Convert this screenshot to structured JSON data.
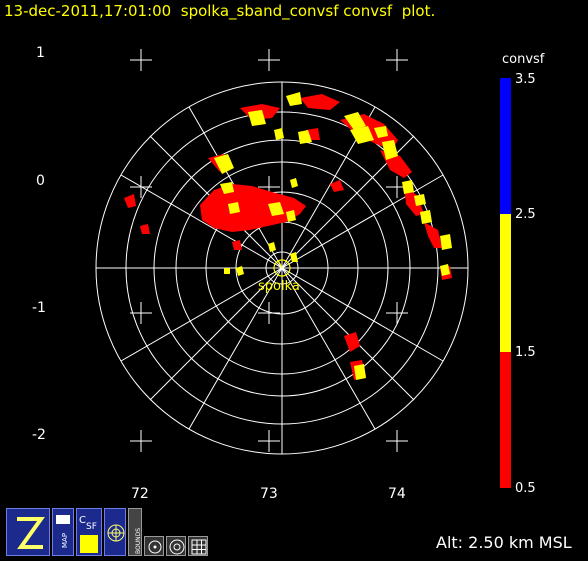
{
  "title": "13-dec-2011,17:01:00  spolka_sband_convsf convsf  plot.",
  "y_ticks": [
    "1",
    "0",
    "-1",
    "-2"
  ],
  "x_ticks": [
    "72",
    "73",
    "74"
  ],
  "station_label": "spolka",
  "colorbar": {
    "label": "convsf",
    "ticks": [
      "3.5",
      "2.5",
      "1.5",
      "0.5"
    ],
    "colors": [
      "#0000ff",
      "#ffff00",
      "#ff0000"
    ]
  },
  "altitude": "Alt: 2.50 km MSL",
  "toolbar": {
    "buttons": [
      {
        "name": "zoom-button",
        "label": "Z"
      },
      {
        "name": "map-button",
        "label": "MAP"
      },
      {
        "name": "csf-button",
        "label": "CSF"
      },
      {
        "name": "radar-button",
        "label": "radar"
      },
      {
        "name": "bounds-button",
        "label": "BOUNDS"
      },
      {
        "name": "ring-button",
        "label": "ring"
      },
      {
        "name": "target-button",
        "label": "target"
      },
      {
        "name": "grid-button",
        "label": "grid"
      }
    ]
  }
}
